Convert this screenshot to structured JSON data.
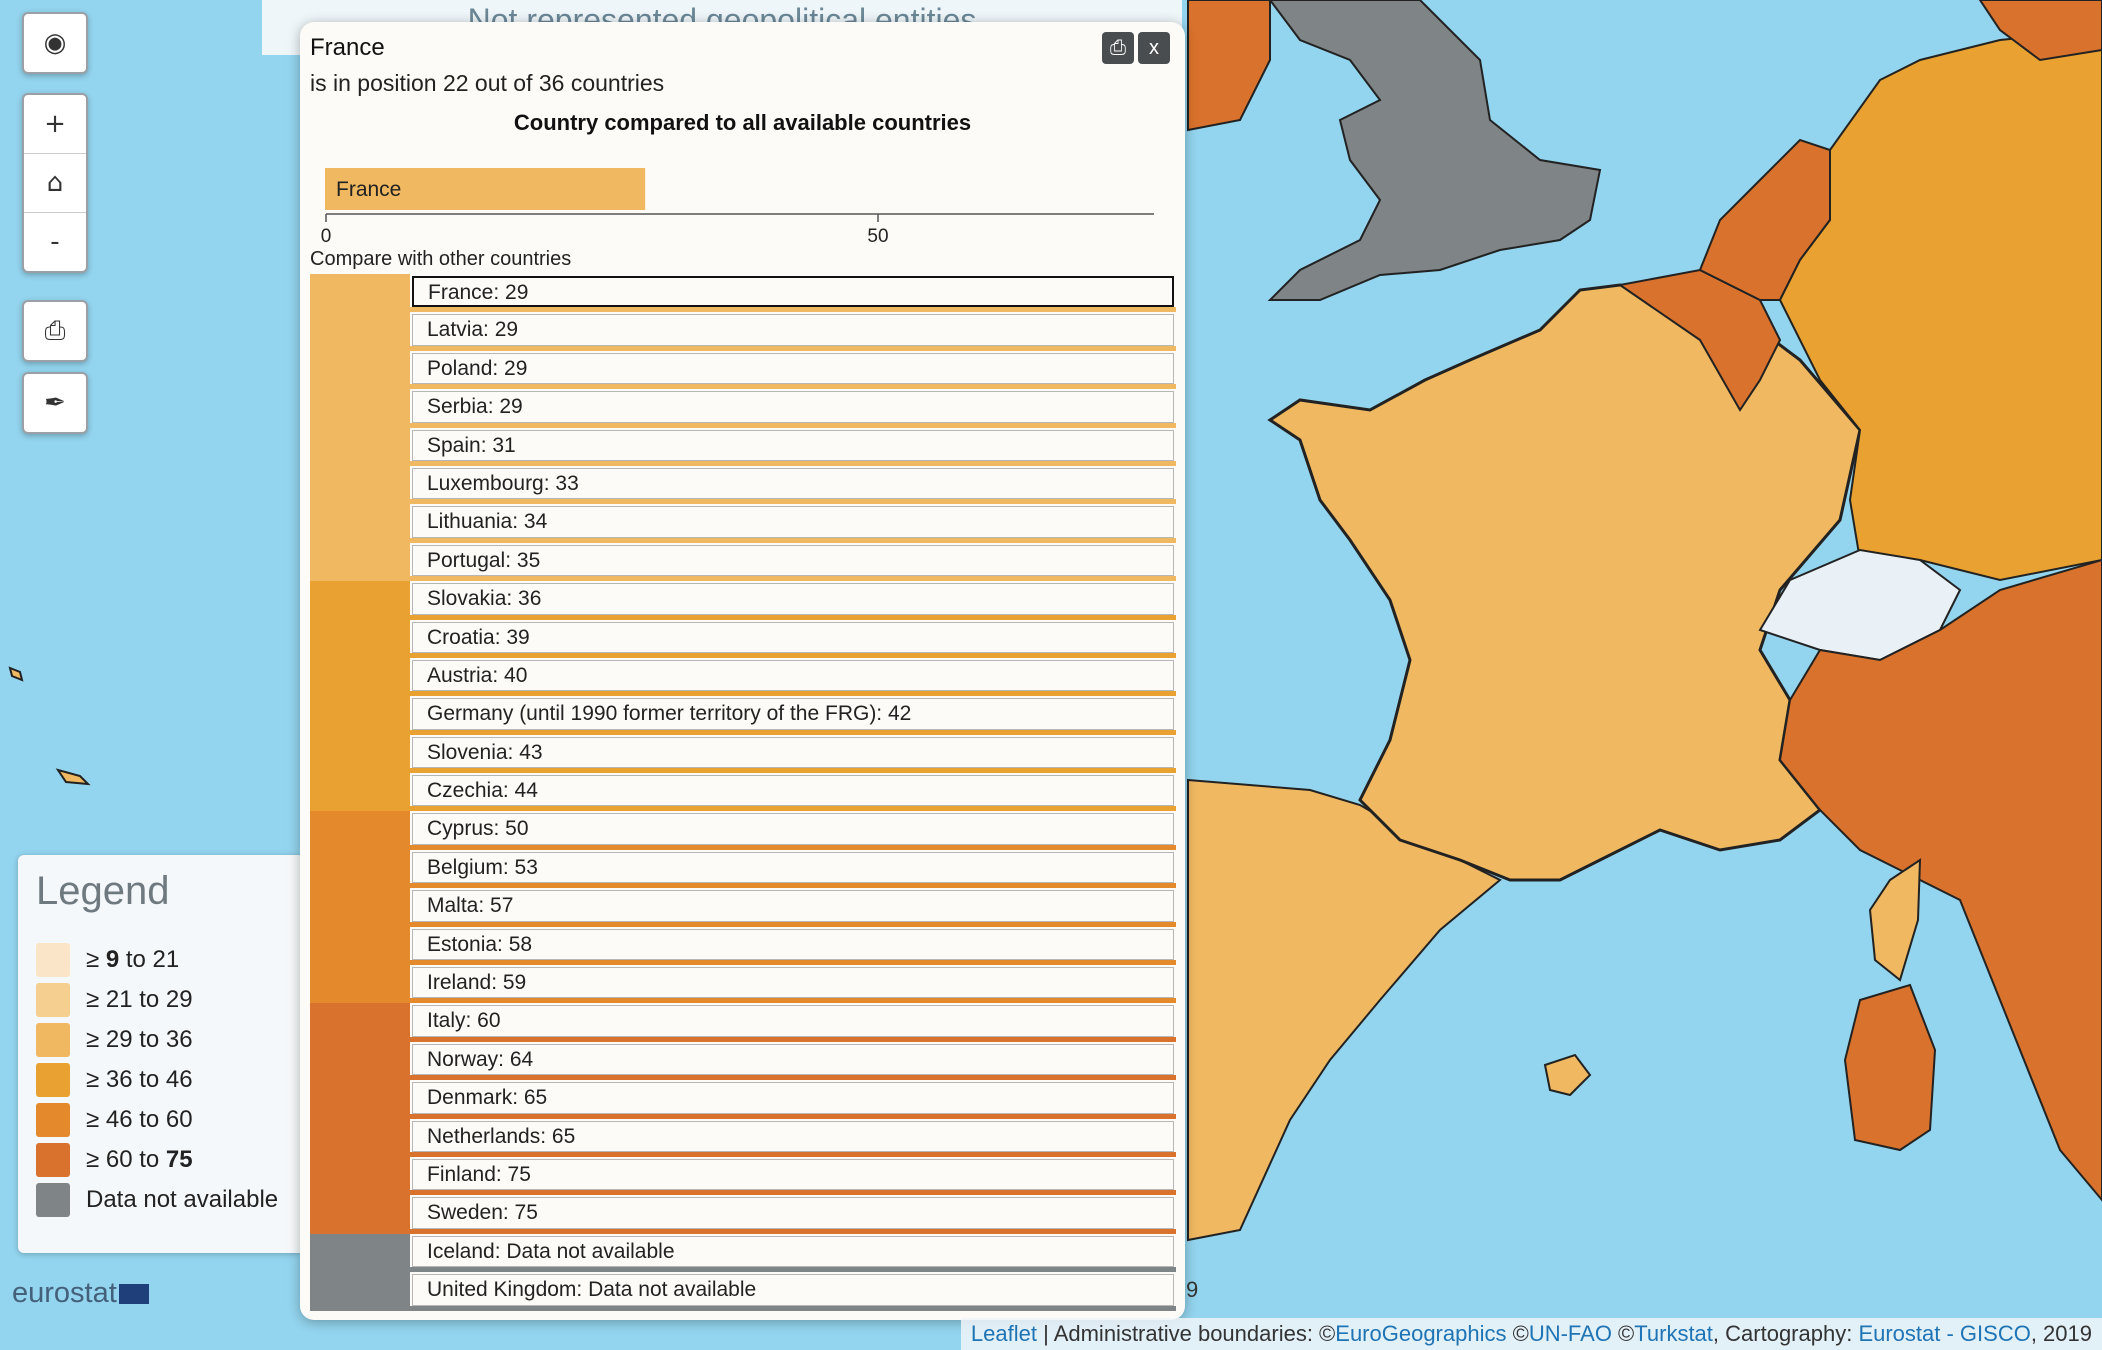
{
  "banner": {
    "text": "Not represented geopolitical entities"
  },
  "controls": {
    "globe_icon": "globe-icon",
    "zoom_in": "+",
    "home_icon": "home-icon",
    "zoom_out": "-",
    "print_icon": "print-icon",
    "brush_icon": "brush-icon"
  },
  "popup": {
    "title": "France",
    "subtitle": "is in position 22 out of 36 countries",
    "chart_title": "Country compared to all available countries",
    "close_label": "x",
    "print_icon": "print-icon",
    "compare_label": "Compare with other countries"
  },
  "chart_data": {
    "type": "bar",
    "title": "Country compared to all available countries",
    "categories": [
      "France"
    ],
    "values": [
      29
    ],
    "xlim": [
      0,
      75
    ],
    "xticks": [
      0,
      50
    ],
    "xtick_labels": [
      "0",
      "50"
    ],
    "bar_color": "#efb861",
    "orientation": "horizontal"
  },
  "countries": [
    {
      "label": "France: 29",
      "class": 3,
      "selected": true
    },
    {
      "label": "Latvia: 29",
      "class": 3
    },
    {
      "label": "Poland: 29",
      "class": 3
    },
    {
      "label": "Serbia: 29",
      "class": 3
    },
    {
      "label": "Spain: 31",
      "class": 3
    },
    {
      "label": "Luxembourg: 33",
      "class": 3
    },
    {
      "label": "Lithuania: 34",
      "class": 3
    },
    {
      "label": "Portugal: 35",
      "class": 3
    },
    {
      "label": "Slovakia: 36",
      "class": 4
    },
    {
      "label": "Croatia: 39",
      "class": 4
    },
    {
      "label": "Austria: 40",
      "class": 4
    },
    {
      "label": "Germany (until 1990 former territory of the FRG): 42",
      "class": 4
    },
    {
      "label": "Slovenia: 43",
      "class": 4
    },
    {
      "label": "Czechia: 44",
      "class": 4
    },
    {
      "label": "Cyprus: 50",
      "class": 5
    },
    {
      "label": "Belgium: 53",
      "class": 5
    },
    {
      "label": "Malta: 57",
      "class": 5
    },
    {
      "label": "Estonia: 58",
      "class": 5
    },
    {
      "label": "Ireland: 59",
      "class": 5
    },
    {
      "label": "Italy: 60",
      "class": 6
    },
    {
      "label": "Norway: 64",
      "class": 6
    },
    {
      "label": "Denmark: 65",
      "class": 6
    },
    {
      "label": "Netherlands: 65",
      "class": 6
    },
    {
      "label": "Finland: 75",
      "class": 6
    },
    {
      "label": "Sweden: 75",
      "class": 6
    },
    {
      "label": "Iceland: Data not available",
      "class": 0
    },
    {
      "label": "United Kingdom: Data not available",
      "class": 0
    }
  ],
  "class_colors": {
    "0": "#7f8487",
    "1": "#fbe5c8",
    "2": "#f4cf90",
    "3": "#efb861",
    "4": "#e9a231",
    "5": "#e48a2d",
    "6": "#d9722c"
  },
  "legend": {
    "title": "Legend",
    "items": [
      {
        "prefix": "≥ ",
        "from": "9",
        "mid": " to 21",
        "to": "",
        "from_bold": true,
        "to_bold": false,
        "color": "#fbe5c8"
      },
      {
        "prefix": "≥ ",
        "from": "21",
        "mid": " to 29",
        "to": "",
        "from_bold": false,
        "to_bold": false,
        "color": "#f4cf90"
      },
      {
        "prefix": "≥ ",
        "from": "29",
        "mid": " to 36",
        "to": "",
        "from_bold": false,
        "to_bold": false,
        "color": "#efb861"
      },
      {
        "prefix": "≥ ",
        "from": "36",
        "mid": " to 46",
        "to": "",
        "from_bold": false,
        "to_bold": false,
        "color": "#e9a231"
      },
      {
        "prefix": "≥ ",
        "from": "46",
        "mid": " to 60",
        "to": "",
        "from_bold": false,
        "to_bold": false,
        "color": "#e48a2d"
      },
      {
        "prefix": "≥ ",
        "from": "60",
        "mid": " to ",
        "to": "75",
        "from_bold": false,
        "to_bold": true,
        "color": "#d9722c"
      },
      {
        "prefix": "",
        "from": "Data not available",
        "mid": "",
        "to": "",
        "from_bold": false,
        "to_bold": false,
        "color": "#7f8487"
      }
    ]
  },
  "logo": {
    "text": "eurostat"
  },
  "footer_fragment": "9",
  "attribution": {
    "leaflet": "Leaflet",
    "sep1": " | Administrative boundaries: ©",
    "eurogeographics": "EuroGeographics",
    "sep2": " ©",
    "unfao": "UN-FAO",
    "sep3": " ©",
    "turkstat": "Turkstat",
    "sep4": ", Cartography: ",
    "eurostat": "Eurostat - GISCO",
    "sep5": ", 2019"
  }
}
